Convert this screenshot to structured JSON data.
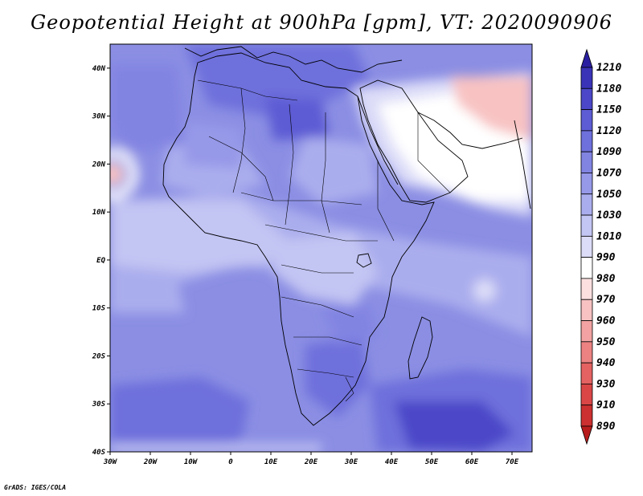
{
  "title": "Geopotential Height at 900hPa [gpm], VT: 2020090906",
  "credit": "GrADS: IGES/COLA",
  "axes": {
    "lon_ticks": [
      {
        "label": "30W",
        "value": -30
      },
      {
        "label": "20W",
        "value": -20
      },
      {
        "label": "10W",
        "value": -10
      },
      {
        "label": "0",
        "value": 0
      },
      {
        "label": "10E",
        "value": 10
      },
      {
        "label": "20E",
        "value": 20
      },
      {
        "label": "30E",
        "value": 30
      },
      {
        "label": "40E",
        "value": 40
      },
      {
        "label": "50E",
        "value": 50
      },
      {
        "label": "60E",
        "value": 60
      },
      {
        "label": "70E",
        "value": 70
      }
    ],
    "lat_ticks": [
      {
        "label": "40N",
        "value": 40
      },
      {
        "label": "30N",
        "value": 30
      },
      {
        "label": "20N",
        "value": 20
      },
      {
        "label": "10N",
        "value": 10
      },
      {
        "label": "EQ",
        "value": 0
      },
      {
        "label": "10S",
        "value": -10
      },
      {
        "label": "20S",
        "value": -20
      },
      {
        "label": "30S",
        "value": -30
      },
      {
        "label": "40S",
        "value": -40
      }
    ],
    "lon_range": [
      -30,
      75
    ],
    "lat_range": [
      -40,
      45
    ]
  },
  "colorbar": {
    "levels": [
      "1210",
      "1180",
      "1150",
      "1120",
      "1090",
      "1070",
      "1050",
      "1030",
      "1010",
      "990",
      "980",
      "970",
      "960",
      "950",
      "940",
      "930",
      "910",
      "890"
    ],
    "colors": [
      "#2a1fa0",
      "#3a33b8",
      "#4b47c8",
      "#5d5cd4",
      "#6e70dc",
      "#8284e2",
      "#9698e8",
      "#aaaded",
      "#c3c5f3",
      "#dcdcf8",
      "#ffffff",
      "#fce0e0",
      "#f8c2c2",
      "#f2a2a2",
      "#ec8282",
      "#e46262",
      "#da4646",
      "#cc3030",
      "#b81c1c"
    ]
  },
  "map_colors": {
    "ocean_base": "#8b8ee3",
    "high_deep": "#4b47c8",
    "high_mid": "#6e70dc",
    "low_light": "#c3c5f3",
    "lowest": "#ffffff",
    "heat_low": "#f8c2c2",
    "coast": "#000000"
  },
  "map_description_free": true
}
